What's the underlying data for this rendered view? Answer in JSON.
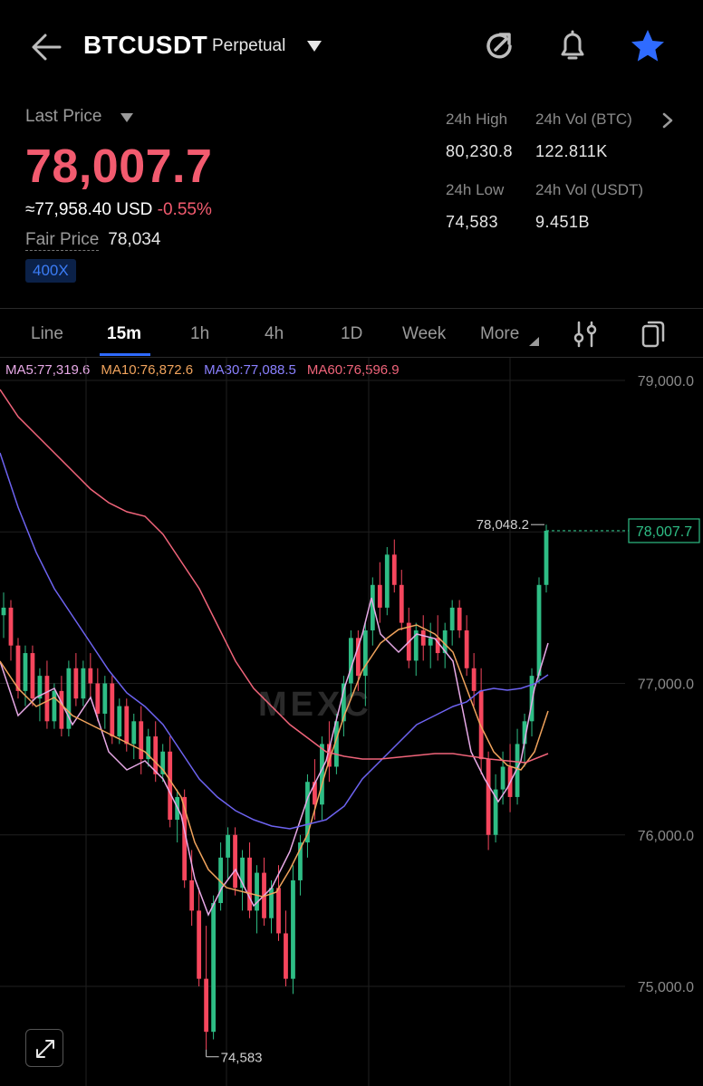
{
  "header": {
    "symbol": "BTCUSDT",
    "contract_type": "Perpetual"
  },
  "ticker": {
    "last_price_label": "Last Price",
    "last_price": "78,007.7",
    "usd_value": "≈77,958.40 USD",
    "change_pct": "-0.55%",
    "fair_price_label": "Fair Price",
    "fair_price": "78,034",
    "leverage": "400X",
    "high_label": "24h High",
    "high": "80,230.8",
    "vol_btc_label": "24h Vol (BTC)",
    "vol_btc": "122.811K",
    "low_label": "24h Low",
    "low": "74,583",
    "vol_usdt_label": "24h Vol  (USDT)",
    "vol_usdt": "9.451B"
  },
  "tabs": {
    "items": [
      "Line",
      "15m",
      "1h",
      "4h",
      "1D",
      "Week",
      "More"
    ],
    "active": "15m"
  },
  "ma_legend": {
    "ma5": "MA5:77,319.6",
    "ma10": "MA10:76,872.6",
    "ma30": "MA30:77,088.5",
    "ma60": "MA60:76,596.9"
  },
  "colors": {
    "up": "#2ebd85",
    "down": "#f6465d",
    "price_red": "#f25b6f",
    "accent": "#2f6bff",
    "ma5": "#e7a9e6",
    "ma10": "#f0a35c",
    "ma30": "#6d63f0",
    "ma60": "#f0647a"
  },
  "chart_data": {
    "type": "candlestick",
    "timeframe": "15m",
    "watermark": "MEXC",
    "y_ticks": [
      "79,000.0",
      "78,000.0",
      "77,000.0",
      "76,000.0",
      "75,000.0"
    ],
    "ylim": [
      74500,
      79200
    ],
    "current_price_label": "78,007.7",
    "current_price": 78007.7,
    "high_marker": "78,048.2",
    "high_marker_value": 78048.2,
    "low_marker": "74,583",
    "low_marker_value": 74583,
    "candles": [
      [
        77450,
        77600,
        77300,
        77500
      ],
      [
        77500,
        77550,
        77150,
        77250
      ],
      [
        77250,
        77300,
        76900,
        76950
      ],
      [
        76950,
        77250,
        76850,
        77200
      ],
      [
        77200,
        77250,
        76850,
        76900
      ],
      [
        76900,
        77100,
        76750,
        77050
      ],
      [
        77050,
        77150,
        76700,
        76750
      ],
      [
        76750,
        77000,
        76700,
        76950
      ],
      [
        76950,
        77050,
        76650,
        76700
      ],
      [
        76700,
        77150,
        76650,
        77100
      ],
      [
        77100,
        77200,
        76850,
        76900
      ],
      [
        76900,
        77150,
        76850,
        77100
      ],
      [
        77100,
        77200,
        76900,
        77000
      ],
      [
        77000,
        77100,
        76750,
        76800
      ],
      [
        76800,
        77050,
        76700,
        77000
      ],
      [
        77000,
        77050,
        76600,
        76650
      ],
      [
        76650,
        76900,
        76600,
        76850
      ],
      [
        76850,
        76900,
        76550,
        76600
      ],
      [
        76600,
        76800,
        76500,
        76750
      ],
      [
        76750,
        76850,
        76400,
        76500
      ],
      [
        76500,
        76700,
        76450,
        76650
      ],
      [
        76650,
        76750,
        76350,
        76400
      ],
      [
        76400,
        76600,
        76350,
        76550
      ],
      [
        76550,
        76650,
        76050,
        76100
      ],
      [
        76100,
        76300,
        75950,
        76250
      ],
      [
        76250,
        76300,
        75650,
        75700
      ],
      [
        75700,
        75900,
        75400,
        75500
      ],
      [
        75500,
        75650,
        75000,
        75050
      ],
      [
        75050,
        75400,
        74583,
        74700
      ],
      [
        74700,
        75600,
        74650,
        75550
      ],
      [
        75550,
        75950,
        75500,
        75850
      ],
      [
        75850,
        76050,
        75700,
        76000
      ],
      [
        76000,
        76050,
        75600,
        75650
      ],
      [
        75650,
        75900,
        75500,
        75850
      ],
      [
        75850,
        75950,
        75450,
        75500
      ],
      [
        75500,
        75800,
        75350,
        75750
      ],
      [
        75750,
        75850,
        75400,
        75450
      ],
      [
        75450,
        75700,
        75350,
        75650
      ],
      [
        75650,
        75800,
        75300,
        75350
      ],
      [
        75350,
        75500,
        75000,
        75050
      ],
      [
        75050,
        75800,
        74950,
        75700
      ],
      [
        75700,
        76000,
        75600,
        75950
      ],
      [
        75950,
        76400,
        75850,
        76350
      ],
      [
        76350,
        76500,
        76100,
        76200
      ],
      [
        76200,
        76650,
        76100,
        76600
      ],
      [
        76600,
        76750,
        76350,
        76450
      ],
      [
        76450,
        76800,
        76400,
        76750
      ],
      [
        76750,
        77050,
        76650,
        77000
      ],
      [
        77000,
        77350,
        76900,
        77300
      ],
      [
        77300,
        77350,
        76950,
        77050
      ],
      [
        77050,
        77400,
        76850,
        77350
      ],
      [
        77350,
        77700,
        77250,
        77650
      ],
      [
        77650,
        77800,
        77400,
        77500
      ],
      [
        77500,
        77900,
        77450,
        77850
      ],
      [
        77850,
        77950,
        77600,
        77650
      ],
      [
        77650,
        77750,
        77350,
        77400
      ],
      [
        77400,
        77500,
        77100,
        77150
      ],
      [
        77150,
        77400,
        77050,
        77350
      ],
      [
        77350,
        77450,
        77150,
        77250
      ],
      [
        77250,
        77400,
        77100,
        77300
      ],
      [
        77300,
        77450,
        77150,
        77200
      ],
      [
        77200,
        77400,
        77100,
        77350
      ],
      [
        77350,
        77550,
        77250,
        77500
      ],
      [
        77500,
        77550,
        77300,
        77350
      ],
      [
        77350,
        77450,
        77050,
        77100
      ],
      [
        77100,
        77200,
        76850,
        76950
      ],
      [
        76950,
        77100,
        76400,
        76500
      ],
      [
        76500,
        76550,
        75900,
        76000
      ],
      [
        76000,
        76400,
        75950,
        76300
      ],
      [
        76300,
        76550,
        76200,
        76450
      ],
      [
        76450,
        76600,
        76150,
        76250
      ],
      [
        76250,
        76700,
        76200,
        76600
      ],
      [
        76600,
        76800,
        76450,
        76750
      ],
      [
        76750,
        77100,
        76650,
        77050
      ],
      [
        77050,
        77700,
        77000,
        77650
      ],
      [
        77650,
        78048.2,
        77600,
        78007.7
      ]
    ],
    "ma_paths": {
      "ma5": [
        [
          0,
          730
        ],
        [
          20,
          790
        ],
        [
          40,
          770
        ],
        [
          60,
          760
        ],
        [
          80,
          800
        ],
        [
          100,
          770
        ],
        [
          120,
          830
        ],
        [
          140,
          850
        ],
        [
          160,
          840
        ],
        [
          180,
          860
        ],
        [
          200,
          900
        ],
        [
          215,
          970
        ],
        [
          230,
          1010
        ],
        [
          245,
          980
        ],
        [
          260,
          960
        ],
        [
          280,
          1000
        ],
        [
          300,
          980
        ],
        [
          320,
          940
        ],
        [
          340,
          880
        ],
        [
          360,
          840
        ],
        [
          380,
          760
        ],
        [
          400,
          700
        ],
        [
          410,
          660
        ],
        [
          420,
          700
        ],
        [
          440,
          720
        ],
        [
          460,
          700
        ],
        [
          480,
          705
        ],
        [
          500,
          730
        ],
        [
          510,
          780
        ],
        [
          520,
          830
        ],
        [
          535,
          860
        ],
        [
          550,
          885
        ],
        [
          560,
          870
        ],
        [
          575,
          840
        ],
        [
          590,
          760
        ],
        [
          605,
          710
        ]
      ],
      "ma10": [
        [
          0,
          730
        ],
        [
          20,
          760
        ],
        [
          40,
          780
        ],
        [
          60,
          770
        ],
        [
          80,
          790
        ],
        [
          100,
          800
        ],
        [
          120,
          810
        ],
        [
          140,
          820
        ],
        [
          160,
          830
        ],
        [
          180,
          850
        ],
        [
          200,
          880
        ],
        [
          215,
          930
        ],
        [
          230,
          960
        ],
        [
          250,
          980
        ],
        [
          270,
          985
        ],
        [
          290,
          990
        ],
        [
          305,
          985
        ],
        [
          320,
          960
        ],
        [
          340,
          920
        ],
        [
          360,
          850
        ],
        [
          380,
          790
        ],
        [
          400,
          740
        ],
        [
          420,
          710
        ],
        [
          440,
          695
        ],
        [
          460,
          690
        ],
        [
          480,
          700
        ],
        [
          500,
          720
        ],
        [
          515,
          760
        ],
        [
          530,
          800
        ],
        [
          545,
          830
        ],
        [
          560,
          845
        ],
        [
          575,
          850
        ],
        [
          590,
          830
        ],
        [
          605,
          785
        ]
      ],
      "ma30": [
        [
          0,
          500
        ],
        [
          20,
          560
        ],
        [
          40,
          610
        ],
        [
          60,
          650
        ],
        [
          80,
          680
        ],
        [
          100,
          710
        ],
        [
          120,
          740
        ],
        [
          140,
          765
        ],
        [
          160,
          780
        ],
        [
          180,
          800
        ],
        [
          200,
          830
        ],
        [
          220,
          860
        ],
        [
          240,
          880
        ],
        [
          260,
          895
        ],
        [
          280,
          905
        ],
        [
          300,
          912
        ],
        [
          320,
          915
        ],
        [
          340,
          910
        ],
        [
          360,
          905
        ],
        [
          380,
          890
        ],
        [
          400,
          860
        ],
        [
          420,
          840
        ],
        [
          440,
          820
        ],
        [
          460,
          800
        ],
        [
          480,
          790
        ],
        [
          500,
          780
        ],
        [
          515,
          775
        ],
        [
          530,
          763
        ],
        [
          545,
          760
        ],
        [
          560,
          762
        ],
        [
          575,
          760
        ],
        [
          590,
          755
        ],
        [
          605,
          745
        ]
      ],
      "ma60": [
        [
          0,
          430
        ],
        [
          20,
          460
        ],
        [
          40,
          480
        ],
        [
          60,
          500
        ],
        [
          80,
          520
        ],
        [
          100,
          540
        ],
        [
          120,
          555
        ],
        [
          140,
          565
        ],
        [
          160,
          570
        ],
        [
          180,
          590
        ],
        [
          200,
          620
        ],
        [
          220,
          650
        ],
        [
          240,
          690
        ],
        [
          260,
          730
        ],
        [
          280,
          760
        ],
        [
          300,
          780
        ],
        [
          320,
          800
        ],
        [
          340,
          815
        ],
        [
          360,
          830
        ],
        [
          380,
          835
        ],
        [
          400,
          838
        ],
        [
          420,
          838
        ],
        [
          440,
          836
        ],
        [
          460,
          834
        ],
        [
          480,
          832
        ],
        [
          500,
          832
        ],
        [
          520,
          835
        ],
        [
          540,
          838
        ],
        [
          560,
          840
        ],
        [
          580,
          842
        ],
        [
          605,
          832
        ]
      ]
    }
  }
}
